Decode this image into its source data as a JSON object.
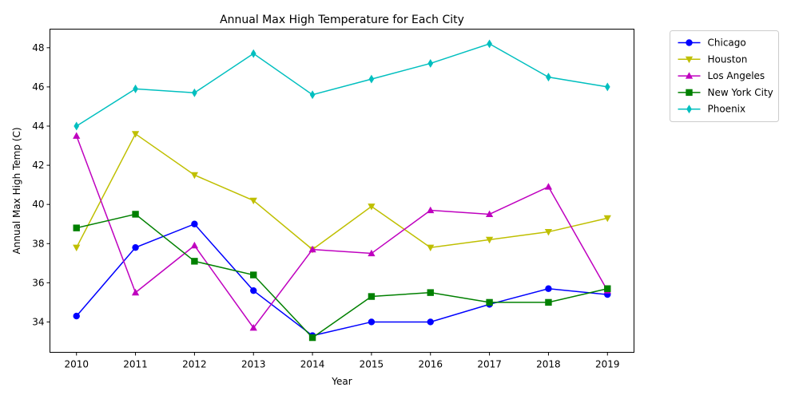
{
  "chart_data": {
    "type": "line",
    "title": "Annual Max High Temperature for Each City",
    "xlabel": "Year",
    "ylabel": "Annual Max High Temp (C)",
    "x": [
      2010,
      2011,
      2012,
      2013,
      2014,
      2015,
      2016,
      2017,
      2018,
      2019
    ],
    "ylim": [
      32.45,
      48.95
    ],
    "yticks": [
      34,
      36,
      38,
      40,
      42,
      44,
      46,
      48
    ],
    "grid": false,
    "legend_position": "outside-top-right",
    "series": [
      {
        "name": "Chicago",
        "color": "#0000ff",
        "marker": "circle",
        "values": [
          34.3,
          37.8,
          39.0,
          35.6,
          33.3,
          34.0,
          34.0,
          34.9,
          35.7,
          35.4
        ]
      },
      {
        "name": "Houston",
        "color": "#bfbf00",
        "marker": "triangle-down",
        "values": [
          37.8,
          43.6,
          41.5,
          40.2,
          37.7,
          39.9,
          37.8,
          38.2,
          38.6,
          39.3
        ]
      },
      {
        "name": "Los Angeles",
        "color": "#bf00bf",
        "marker": "triangle-up",
        "values": [
          43.5,
          35.5,
          37.9,
          33.7,
          37.7,
          37.5,
          39.7,
          39.5,
          40.9,
          35.6
        ]
      },
      {
        "name": "New York City",
        "color": "#008000",
        "marker": "square",
        "values": [
          38.8,
          39.5,
          37.1,
          36.4,
          33.2,
          35.3,
          35.5,
          35.0,
          35.0,
          35.7
        ]
      },
      {
        "name": "Phoenix",
        "color": "#00bfbf",
        "marker": "diamond",
        "values": [
          44.0,
          45.9,
          45.7,
          47.7,
          45.6,
          46.4,
          47.2,
          48.2,
          46.5,
          46.0
        ]
      }
    ]
  }
}
